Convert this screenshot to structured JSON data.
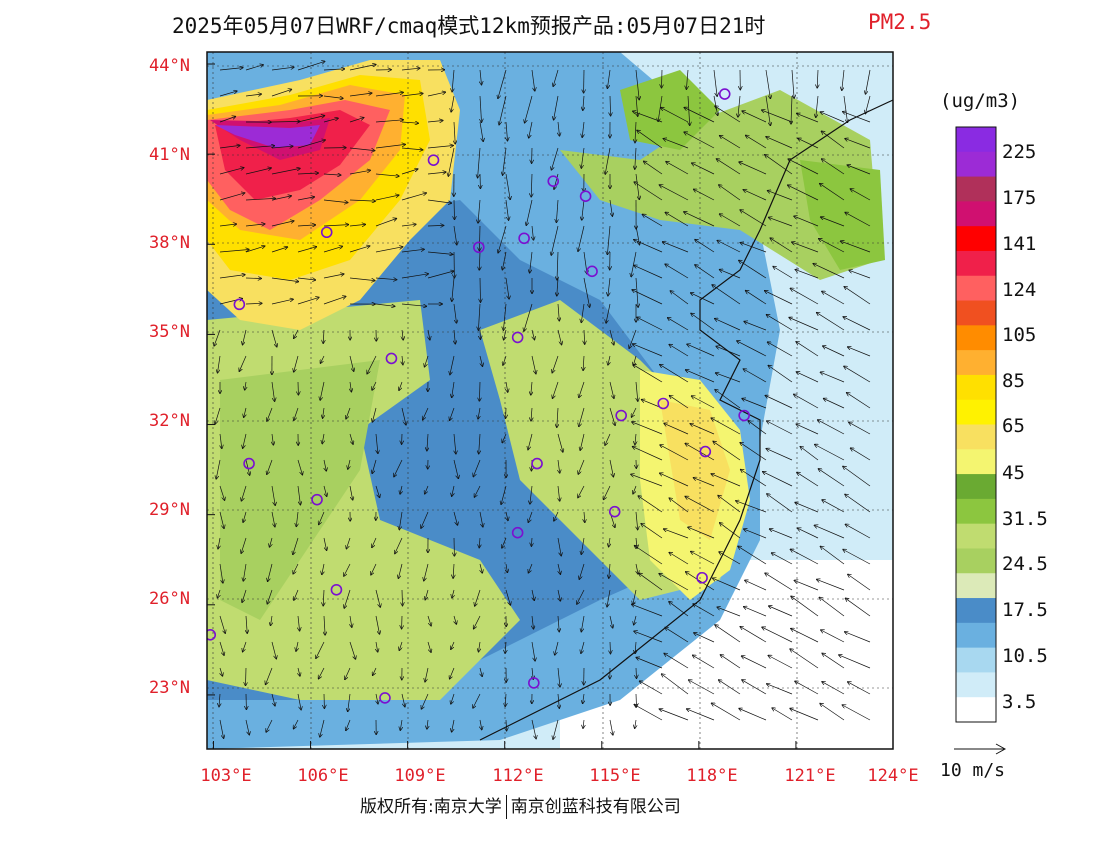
{
  "header": {
    "title": "2025年05月07日WRF/cmaq模式12km预报产品:05月07日21时",
    "product": "PM2.5"
  },
  "axes": {
    "lat_labels": [
      "44°N",
      "41°N",
      "38°N",
      "35°N",
      "32°N",
      "29°N",
      "26°N",
      "23°N"
    ],
    "lon_labels": [
      "103°E",
      "106°E",
      "109°E",
      "112°E",
      "115°E",
      "118°E",
      "121°E",
      "124°E"
    ],
    "lat_values": [
      44,
      41,
      38,
      35,
      32,
      29,
      26,
      23
    ],
    "lon_values": [
      103,
      106,
      109,
      112,
      115,
      118,
      121,
      124
    ],
    "lat_range": [
      21.2,
      44.4
    ],
    "lon_range": [
      102.8,
      124.0
    ]
  },
  "colorbar": {
    "unit": "(ug/m3)",
    "labels": [
      "225",
      "175",
      "141",
      "124",
      "105",
      "85",
      "65",
      "45",
      "31.5",
      "24.5",
      "17.5",
      "10.5",
      "3.5"
    ],
    "colors": [
      "#8a2be2",
      "#9c2bd6",
      "#b0305a",
      "#d01070",
      "#ff0000",
      "#f0204a",
      "#ff6060",
      "#f05020",
      "#ff8c00",
      "#ffb030",
      "#ffe000",
      "#fff200",
      "#f8e060",
      "#f4f570",
      "#6aaa32",
      "#8cc63f",
      "#c0dc70",
      "#a8d060",
      "#dceab8",
      "#4a8cc8",
      "#6ab0e0",
      "#a8d8f0",
      "#d0ecf8",
      "#ffffff"
    ]
  },
  "wind": {
    "reference": "10 m/s"
  },
  "footer": {
    "left": "版权所有:南京大学",
    "right": "南京创蓝科技有限公司"
  },
  "stations": [
    {
      "lon": 118.8,
      "lat": 43.0
    },
    {
      "lon": 109.8,
      "lat": 40.8
    },
    {
      "lon": 113.5,
      "lat": 40.1
    },
    {
      "lon": 114.5,
      "lat": 39.6
    },
    {
      "lon": 106.5,
      "lat": 38.4
    },
    {
      "lon": 111.2,
      "lat": 37.9
    },
    {
      "lon": 112.6,
      "lat": 38.2
    },
    {
      "lon": 114.7,
      "lat": 37.1
    },
    {
      "lon": 103.8,
      "lat": 36.0
    },
    {
      "lon": 112.4,
      "lat": 34.9
    },
    {
      "lon": 108.5,
      "lat": 34.2
    },
    {
      "lon": 116.9,
      "lat": 32.7
    },
    {
      "lon": 115.6,
      "lat": 32.3
    },
    {
      "lon": 119.4,
      "lat": 32.3
    },
    {
      "lon": 118.2,
      "lat": 31.1
    },
    {
      "lon": 104.1,
      "lat": 30.7
    },
    {
      "lon": 113.0,
      "lat": 30.7
    },
    {
      "lon": 106.2,
      "lat": 29.5
    },
    {
      "lon": 115.4,
      "lat": 29.1
    },
    {
      "lon": 112.4,
      "lat": 28.4
    },
    {
      "lon": 118.1,
      "lat": 26.9
    },
    {
      "lon": 106.8,
      "lat": 26.5
    },
    {
      "lon": 102.9,
      "lat": 25.0
    },
    {
      "lon": 112.9,
      "lat": 23.4
    },
    {
      "lon": 108.3,
      "lat": 22.9
    }
  ]
}
